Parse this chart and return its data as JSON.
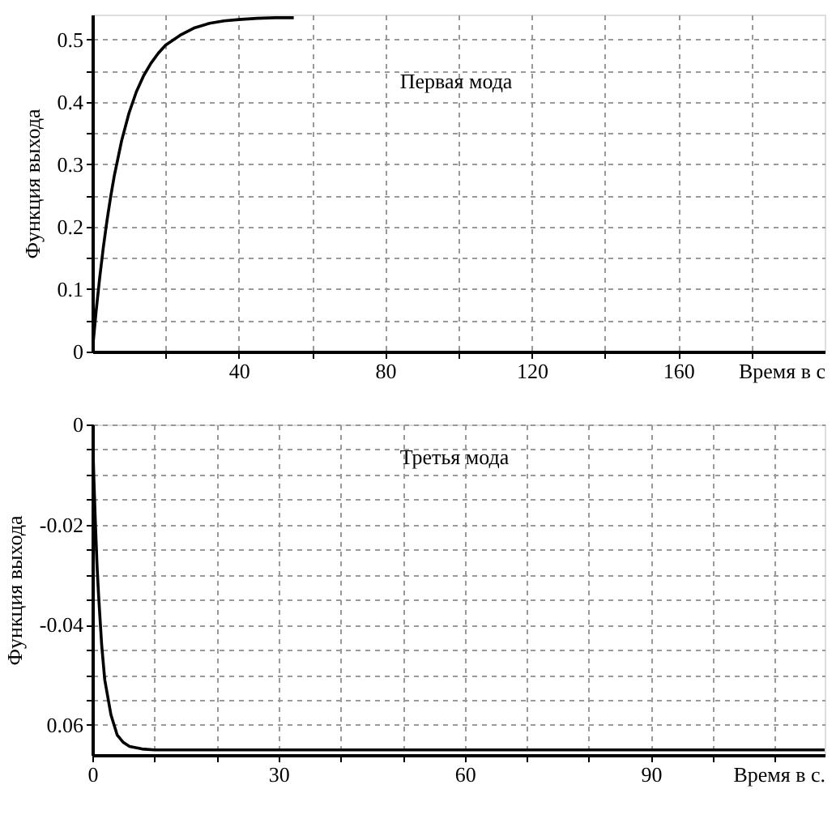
{
  "chart_data": [
    {
      "type": "line",
      "xlabel": "Время в с",
      "ylabel": "Функция выхода",
      "annotations": [
        "Первая мода"
      ],
      "x": [
        0,
        1,
        2,
        3,
        4,
        5,
        6,
        8,
        10,
        12,
        14,
        16,
        18,
        20,
        24,
        28,
        32,
        36,
        40,
        45,
        50,
        55
      ],
      "series": [
        {
          "color": "#000000",
          "values": [
            0,
            0.063,
            0.118,
            0.167,
            0.21,
            0.248,
            0.282,
            0.338,
            0.382,
            0.416,
            0.442,
            0.462,
            0.478,
            0.491,
            0.507,
            0.519,
            0.526,
            0.53,
            0.532,
            0.534,
            0.535,
            0.535
          ]
        }
      ],
      "xlim": [
        0,
        200
      ],
      "ylim": [
        0,
        0.54
      ],
      "xticks": [
        {
          "value": 20,
          "label": null
        },
        40,
        {
          "value": 60,
          "label": null
        },
        80,
        {
          "value": 100,
          "label": null
        },
        120,
        {
          "value": 140,
          "label": null
        },
        160,
        {
          "value": 180,
          "label": null
        }
      ],
      "yticks": [
        0,
        {
          "value": 0.05,
          "label": null
        },
        0.1,
        {
          "value": 0.15,
          "label": null
        },
        0.2,
        {
          "value": 0.25,
          "label": null
        },
        0.3,
        {
          "value": 0.35,
          "label": null
        },
        0.4,
        {
          "value": 0.45,
          "label": null
        },
        0.5
      ],
      "grid": true,
      "marker": "none",
      "line_style": "solid"
    },
    {
      "type": "line",
      "xlabel": "Время в с.",
      "ylabel": "Функция выхода",
      "annotations": [
        "Третья мода"
      ],
      "x": [
        0,
        0.25,
        0.5,
        0.75,
        1,
        1.5,
        2,
        3,
        4,
        5,
        6,
        8,
        10,
        118
      ],
      "series": [
        {
          "color": "#000000",
          "values": [
            0,
            -0.011,
            -0.02,
            -0.028,
            -0.034,
            -0.044,
            -0.051,
            -0.058,
            -0.062,
            -0.0635,
            -0.0643,
            -0.0648,
            -0.065,
            -0.065
          ]
        }
      ],
      "xlim": [
        0,
        118
      ],
      "ylim": [
        -0.066,
        0
      ],
      "xticks": [
        0,
        {
          "value": 10,
          "label": null
        },
        {
          "value": 20,
          "label": null
        },
        30,
        {
          "value": 40,
          "label": null
        },
        {
          "value": 50,
          "label": null
        },
        60,
        {
          "value": 70,
          "label": null
        },
        {
          "value": 80,
          "label": null
        },
        90,
        {
          "value": 100,
          "label": null
        },
        {
          "value": 110,
          "label": null
        }
      ],
      "yticks": [
        0,
        {
          "value": -0.005,
          "label": null
        },
        {
          "value": -0.01,
          "label": null
        },
        {
          "value": -0.015,
          "label": null
        },
        {
          "value": -0.02,
          "label": "-0.02"
        },
        {
          "value": -0.025,
          "label": null
        },
        {
          "value": -0.03,
          "label": null
        },
        {
          "value": -0.035,
          "label": null
        },
        {
          "value": -0.04,
          "label": "-0.04"
        },
        {
          "value": -0.045,
          "label": null
        },
        {
          "value": -0.05,
          "label": null
        },
        {
          "value": -0.055,
          "label": null
        },
        {
          "value": -0.06,
          "label": "0.06"
        }
      ],
      "grid": true,
      "marker": "none",
      "line_style": "solid"
    }
  ]
}
